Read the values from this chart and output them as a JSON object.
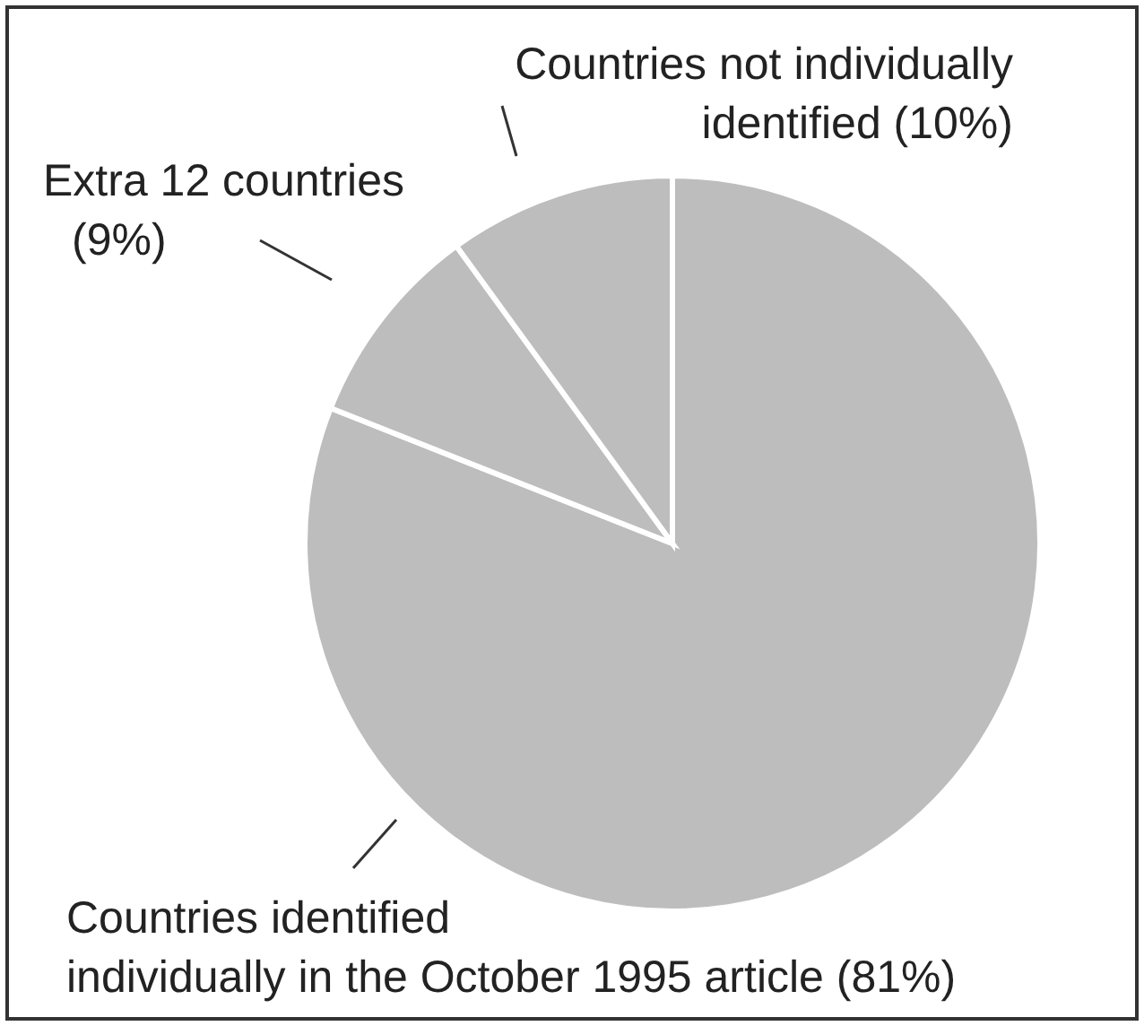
{
  "chart_data": {
    "type": "pie",
    "categories": [
      "Countries identified individually in the October 1995 article",
      "Extra 12 countries",
      "Countries not individually identified"
    ],
    "values": [
      81,
      9,
      10
    ],
    "value_labels": [
      "(81%)",
      "(9%)",
      "(10%)"
    ],
    "colors": [
      "#bdbdbd",
      "#bdbdbd",
      "#bdbdbd"
    ],
    "legend": false
  }
}
